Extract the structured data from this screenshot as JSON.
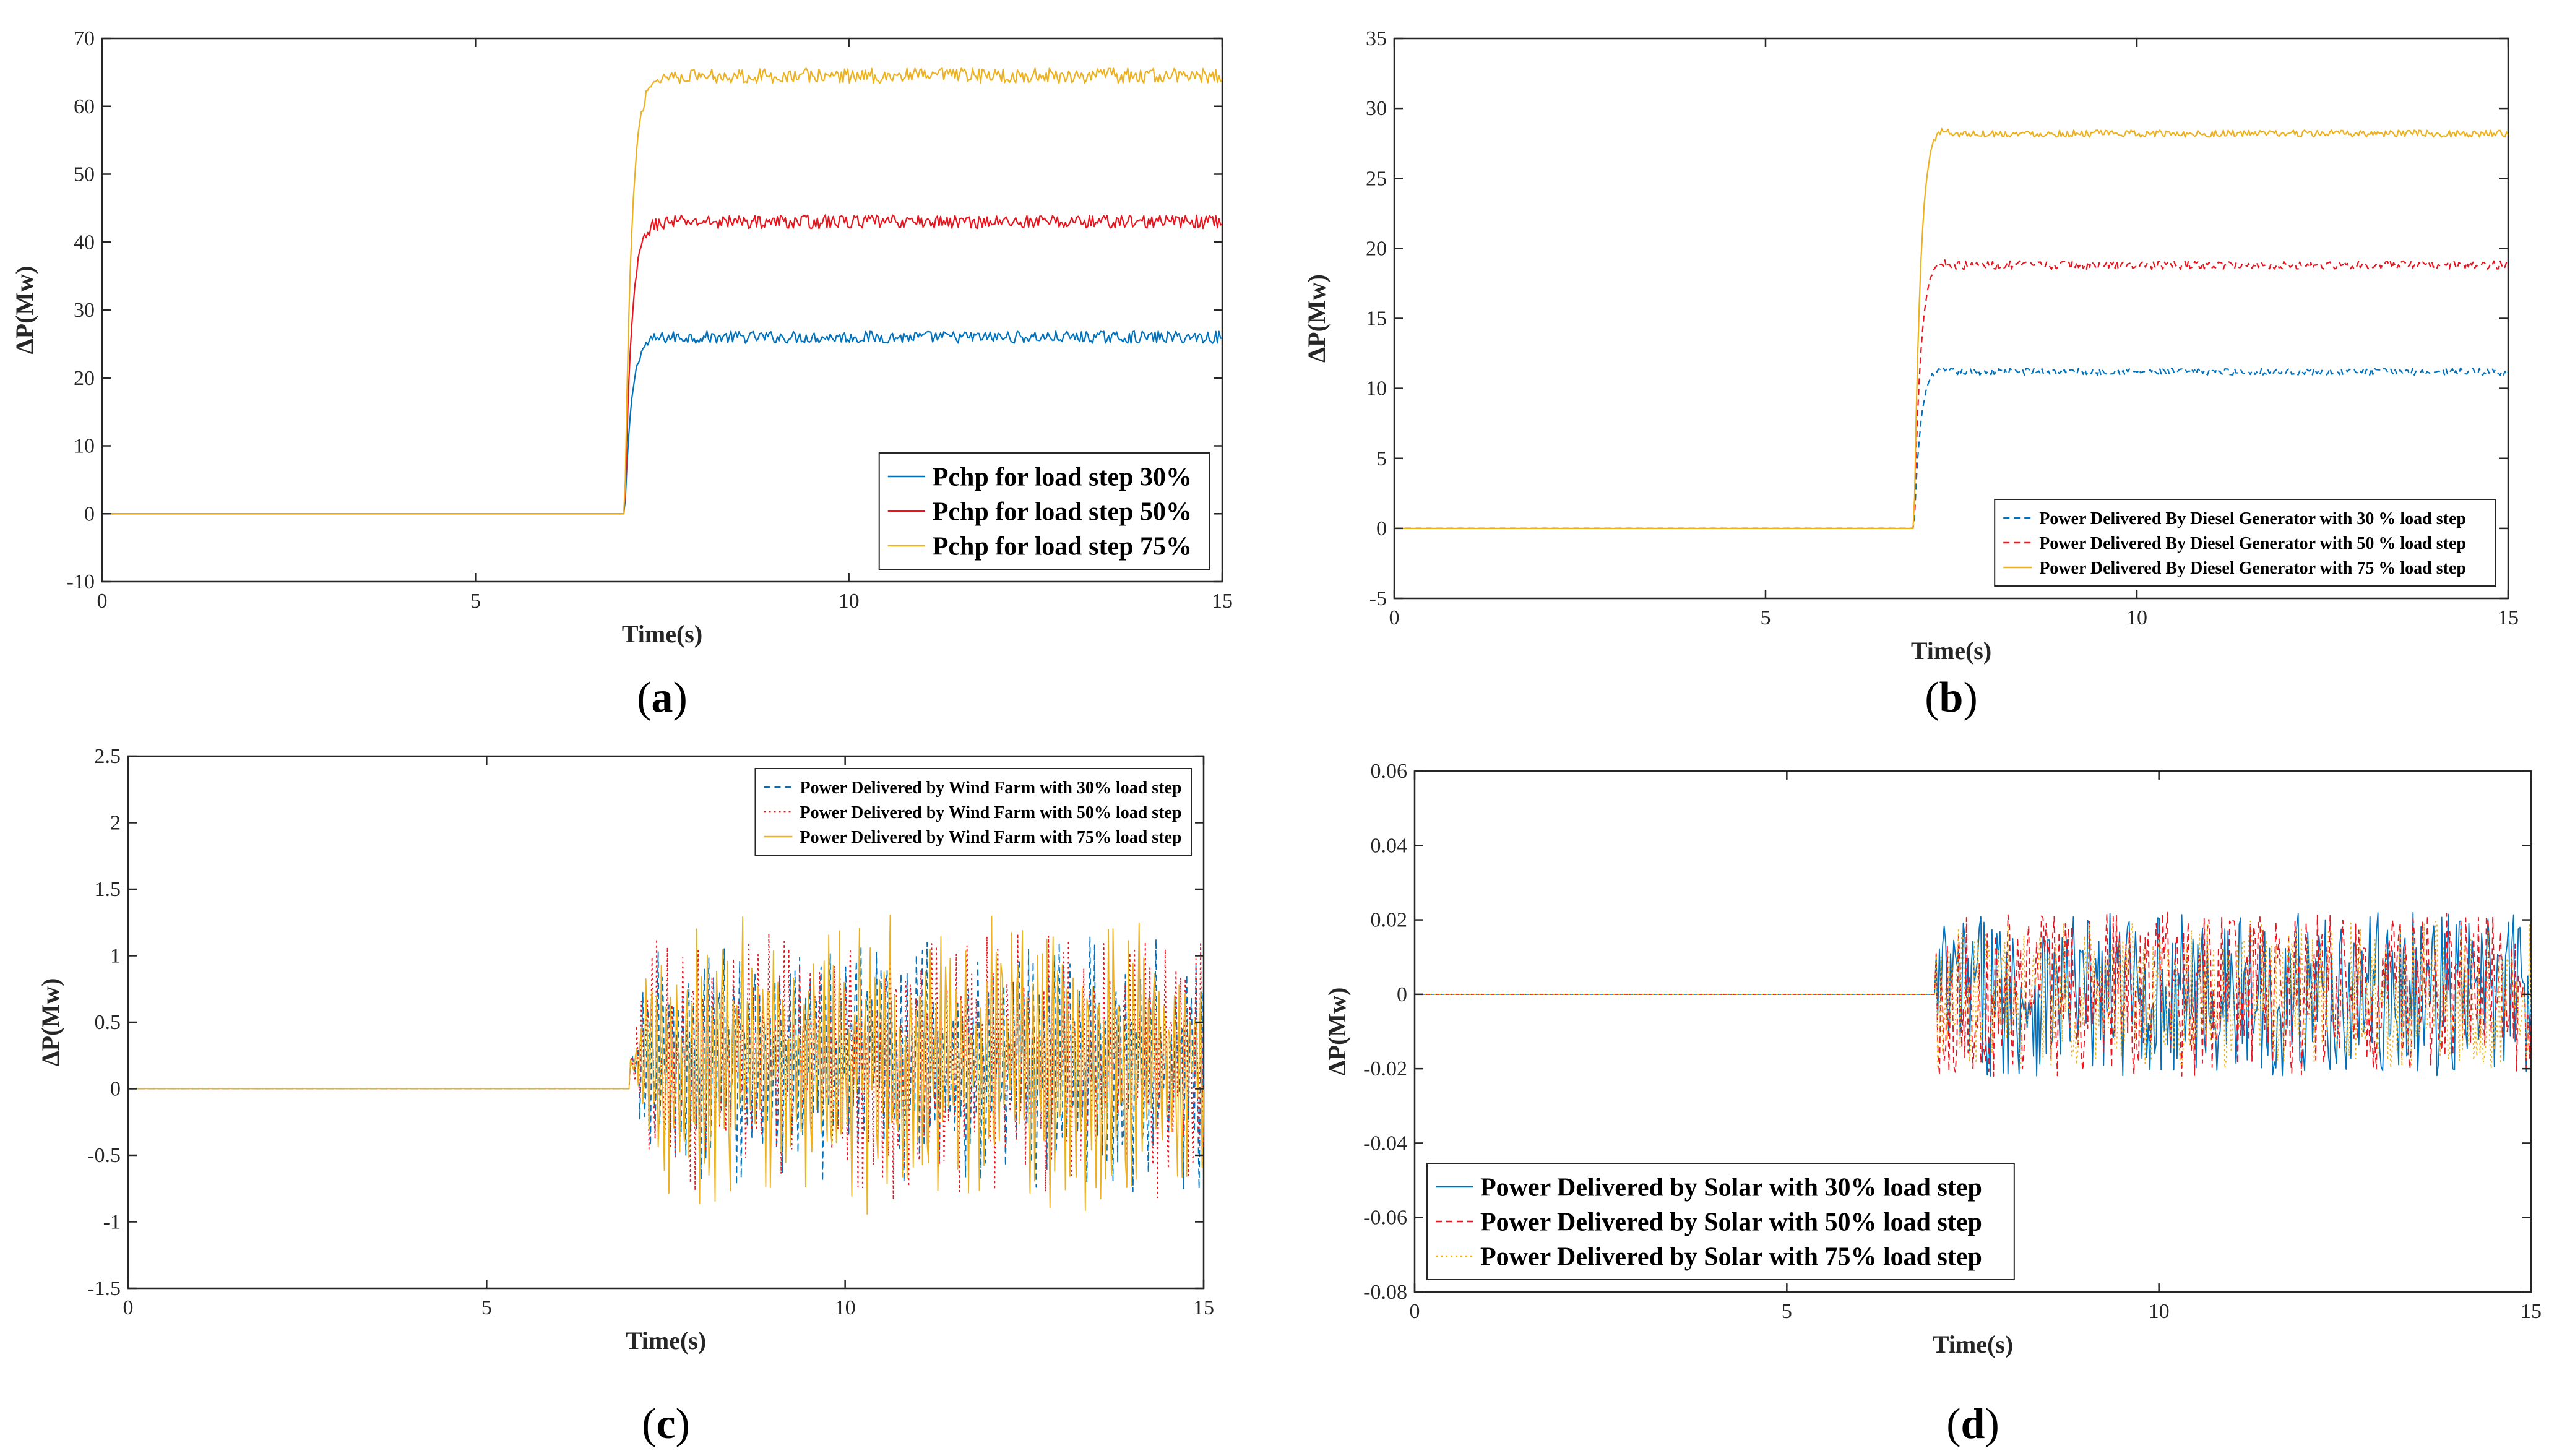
{
  "chart_data": [
    {
      "type": "line",
      "panel_label": "(a)",
      "xlabel": "Time(s)",
      "ylabel": "ΔP(Mw)",
      "xlim": [
        0,
        15
      ],
      "ylim": [
        -10,
        70
      ],
      "xticks": [
        0,
        5,
        10,
        15
      ],
      "yticks": [
        -10,
        0,
        10,
        20,
        30,
        40,
        50,
        60,
        70
      ],
      "legend_position": "bottom-right",
      "legend_font": "large",
      "signal": "step_response",
      "step_time": 7,
      "series": [
        {
          "name": "Pchp for load step 30%",
          "color": "#0072BD",
          "dash": "solid",
          "final": 26,
          "overshoot": 0,
          "ripple": 1.8
        },
        {
          "name": "Pchp for load step 50%",
          "color": "#E8141E",
          "dash": "solid",
          "final": 43,
          "overshoot": 0,
          "ripple": 2.0
        },
        {
          "name": "Pchp for load step 75%",
          "color": "#EDB120",
          "dash": "solid",
          "final": 64.5,
          "overshoot": 0,
          "ripple": 2.2
        }
      ]
    },
    {
      "type": "line",
      "panel_label": "(b)",
      "xlabel": "Time(s)",
      "ylabel": "ΔP(Mw)",
      "xlim": [
        0,
        15
      ],
      "ylim": [
        -5,
        35
      ],
      "xticks": [
        0,
        5,
        10,
        15
      ],
      "yticks": [
        -5,
        0,
        5,
        10,
        15,
        20,
        25,
        30,
        35
      ],
      "legend_position": "bottom-right",
      "legend_font": "small",
      "signal": "step_response",
      "step_time": 7,
      "series": [
        {
          "name": "Power Delivered By Diesel Generator with 30 % load step",
          "color": "#0072BD",
          "dash": "dashed",
          "final": 11.2,
          "overshoot": 1.2,
          "ripple": 0.5
        },
        {
          "name": "Power Delivered By Diesel Generator with 50 % load step",
          "color": "#E8141E",
          "dash": "dashed",
          "final": 18.8,
          "overshoot": 1.9,
          "ripple": 0.6
        },
        {
          "name": "Power Delivered By Diesel Generator with 75 % load step",
          "color": "#EDB120",
          "dash": "solid",
          "final": 28.2,
          "overshoot": 2.8,
          "ripple": 0.5
        }
      ]
    },
    {
      "type": "line",
      "panel_label": "(c)",
      "xlabel": "Time(s)",
      "ylabel": "ΔP(Mw)",
      "xlim": [
        0,
        15
      ],
      "ylim": [
        -1.5,
        2.5
      ],
      "xticks": [
        0,
        5,
        10,
        15
      ],
      "yticks": [
        -1.5,
        -1,
        -0.5,
        0,
        0.5,
        1,
        1.5,
        2,
        2.5
      ],
      "legend_position": "top-right",
      "legend_font": "small",
      "signal": "oscillation",
      "step_time": 7,
      "series": [
        {
          "name": "Power Delivered by Wind Farm with 30% load step",
          "color": "#0072BD",
          "dash": "dashed",
          "center": 0.2,
          "amplitude": 0.85
        },
        {
          "name": "Power Delivered by Wind Farm with 50% load step",
          "color": "#E8141E",
          "dash": "dotted",
          "center": 0.2,
          "amplitude": 0.9
        },
        {
          "name": "Power Delivered by Wind Farm with 75% load step",
          "color": "#EDB120",
          "dash": "solid",
          "center": 0.2,
          "amplitude": 1.0
        }
      ]
    },
    {
      "type": "line",
      "panel_label": "(d)",
      "xlabel": "Time(s)",
      "ylabel": "ΔP(Mw)",
      "xlim": [
        0,
        15
      ],
      "ylim": [
        -0.08,
        0.06
      ],
      "xticks": [
        0,
        5,
        10,
        15
      ],
      "yticks": [
        -0.08,
        -0.06,
        -0.04,
        -0.02,
        0,
        0.02,
        0.04,
        0.06
      ],
      "legend_position": "bottom-left",
      "legend_font": "large",
      "signal": "noise",
      "step_time": 7,
      "series": [
        {
          "name": "Power Delivered by Solar with 30% load step",
          "color": "#0072BD",
          "dash": "solid",
          "center": 0.0,
          "amplitude": 0.022
        },
        {
          "name": "Power Delivered by Solar with 50% load step",
          "color": "#E8141E",
          "dash": "dashed",
          "center": 0.0,
          "amplitude": 0.022
        },
        {
          "name": "Power Delivered by Solar with 75% load step",
          "color": "#EDB120",
          "dash": "dotted",
          "center": 0.0,
          "amplitude": 0.02
        }
      ]
    }
  ]
}
